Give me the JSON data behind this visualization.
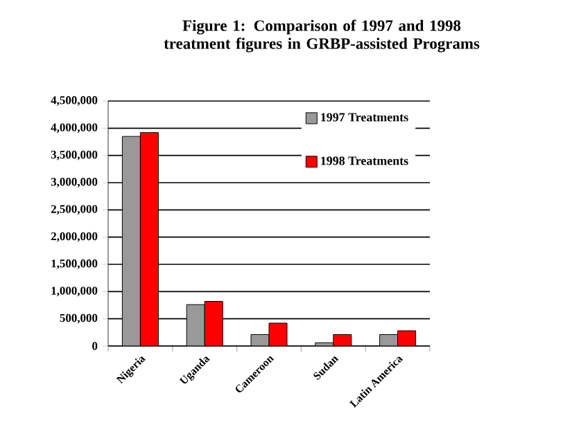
{
  "chart_data": {
    "type": "bar",
    "title": "Figure 1: Comparison of 1997 and 1998 treatment figures in GRBP-assisted Programs",
    "categories": [
      "Nigeria",
      "Uganda",
      "Cameroon",
      "Sudan",
      "Latin America"
    ],
    "series": [
      {
        "name": "1997 Treatments",
        "color": "#999999",
        "values": [
          3850000,
          760000,
          210000,
          60000,
          210000
        ]
      },
      {
        "name": "1998 Treatments",
        "color": "#ff0000",
        "values": [
          3920000,
          820000,
          420000,
          210000,
          280000
        ]
      }
    ],
    "ylim": [
      0,
      4500000
    ],
    "yticks": [
      {
        "value": 0,
        "label": "0"
      },
      {
        "value": 500000,
        "label": "500,000"
      },
      {
        "value": 1000000,
        "label": "1,000,000"
      },
      {
        "value": 1500000,
        "label": "1,500,000"
      },
      {
        "value": 2000000,
        "label": "2,000,000"
      },
      {
        "value": 2500000,
        "label": "2,500,000"
      },
      {
        "value": 3000000,
        "label": "3,000,000"
      },
      {
        "value": 3500000,
        "label": "3,500,000"
      },
      {
        "value": 4000000,
        "label": "4,000,000"
      },
      {
        "value": 4500000,
        "label": "4,500,000"
      }
    ],
    "grid": "y",
    "legend": "top right"
  }
}
